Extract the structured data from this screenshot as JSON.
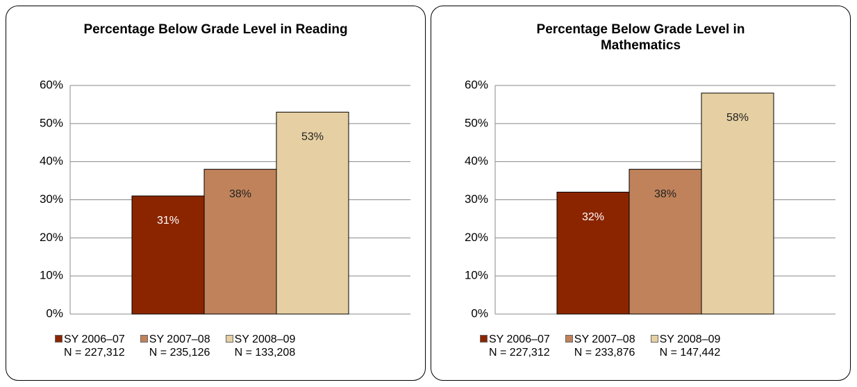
{
  "chart_data": [
    {
      "type": "bar",
      "title": "Percentage Below Grade Level in Reading",
      "series": [
        {
          "name": "SY 2006–07\nN = 227,312",
          "color": "#8b2500",
          "values": [
            31
          ],
          "value_labels": [
            "31%"
          ]
        },
        {
          "name": "SY 2007–08\nN = 235,126",
          "color": "#c0825a",
          "values": [
            38
          ],
          "value_labels": [
            "38%"
          ]
        },
        {
          "name": "SY 2008–09\nN = 133,208",
          "color": "#e6cfa2",
          "values": [
            53
          ],
          "value_labels": [
            "53%"
          ]
        }
      ],
      "ylim": [
        0,
        60
      ],
      "yticks": [
        {
          "value": 0,
          "label": "0%"
        },
        {
          "value": 10,
          "label": "10%"
        },
        {
          "value": 20,
          "label": "20%"
        },
        {
          "value": 30,
          "label": "30%"
        },
        {
          "value": 40,
          "label": "40%"
        },
        {
          "value": 50,
          "label": "50%"
        },
        {
          "value": 60,
          "label": "60%"
        }
      ],
      "grid": true,
      "legend": "bottom"
    },
    {
      "type": "bar",
      "title": "Percentage Below Grade Level in Mathematics",
      "series": [
        {
          "name": "SY 2006–07\nN = 227,312",
          "color": "#8b2500",
          "values": [
            32
          ],
          "value_labels": [
            "32%"
          ]
        },
        {
          "name": "SY 2007–08\nN = 233,876",
          "color": "#c0825a",
          "values": [
            38
          ],
          "value_labels": [
            "38%"
          ]
        },
        {
          "name": "SY 2008–09\nN = 147,442",
          "color": "#e6cfa2",
          "values": [
            58
          ],
          "value_labels": [
            "58%"
          ]
        }
      ],
      "ylim": [
        0,
        60
      ],
      "yticks": [
        {
          "value": 0,
          "label": "0%"
        },
        {
          "value": 10,
          "label": "10%"
        },
        {
          "value": 20,
          "label": "20%"
        },
        {
          "value": 30,
          "label": "30%"
        },
        {
          "value": 40,
          "label": "40%"
        },
        {
          "value": 50,
          "label": "50%"
        },
        {
          "value": 60,
          "label": "60%"
        }
      ],
      "grid": true,
      "legend": "bottom"
    }
  ]
}
